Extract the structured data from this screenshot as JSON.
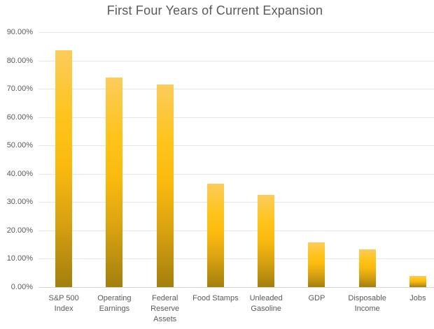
{
  "chart_data": {
    "type": "bar",
    "title": "First Four Years of Current Expansion",
    "categories": [
      "S&P 500\nIndex",
      "Operating\nEarnings",
      "Federal\nReserve\nAssets",
      "Food Stamps",
      "Unleaded\nGasoline",
      "GDP",
      "Disposable\nIncome",
      "Jobs"
    ],
    "values": [
      83.5,
      74.0,
      71.5,
      36.5,
      32.5,
      15.7,
      13.3,
      4.0
    ],
    "xlabel": "",
    "ylabel": "",
    "ylim": [
      0,
      90
    ],
    "ytick_step": 10,
    "ytick_labels": [
      "90.00%",
      "80.00%",
      "70.00%",
      "60.00%",
      "50.00%",
      "40.00%",
      "30.00%",
      "20.00%",
      "10.00%",
      "0.00%"
    ],
    "grid": true,
    "legend_position": "none",
    "colors": {
      "title_text": "#595959",
      "axis_text": "#595959",
      "gridline": "#E6E6E6",
      "axis_line": "#D6D6D6",
      "background": "#FFFFFF"
    },
    "bar_gradient_stops": [
      {
        "pos": 0,
        "color": "#FBCC5C"
      },
      {
        "pos": 28,
        "color": "#FEC41B"
      },
      {
        "pos": 48,
        "color": "#FBBA0E"
      },
      {
        "pos": 72,
        "color": "#D9A211"
      },
      {
        "pos": 100,
        "color": "#A37F0D"
      }
    ]
  }
}
